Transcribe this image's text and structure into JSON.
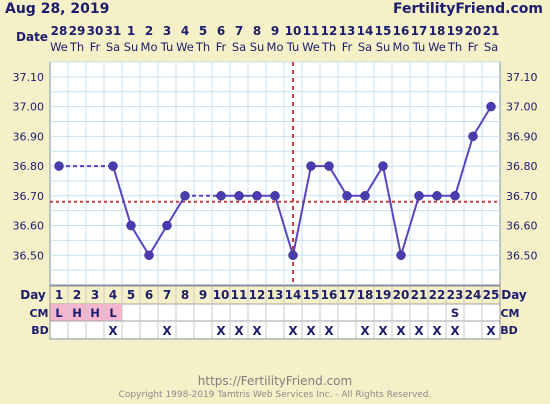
{
  "header": {
    "date": "Aug 28, 2019",
    "brand": "FertilityFriend.com"
  },
  "footer": {
    "url": "https://FertilityFriend.com",
    "copyright": "Copyright 1998-2019 Tamtris Web Services Inc. - All Rights Reserved."
  },
  "chart_data": {
    "type": "line",
    "title": "",
    "row_labels": {
      "date": "Date",
      "day": "Day",
      "cm": "CM",
      "bd": "BD"
    },
    "dates": [
      "28",
      "29",
      "30",
      "31",
      "1",
      "2",
      "3",
      "4",
      "5",
      "6",
      "7",
      "8",
      "9",
      "10",
      "11",
      "12",
      "13",
      "14",
      "15",
      "16",
      "17",
      "18",
      "19",
      "20",
      "21"
    ],
    "weekdays": [
      "We",
      "Th",
      "Fr",
      "Sa",
      "Su",
      "Mo",
      "Tu",
      "We",
      "Th",
      "Fr",
      "Sa",
      "Su",
      "Mo",
      "Tu",
      "We",
      "Th",
      "Fr",
      "Sa",
      "Su",
      "Mo",
      "Tu",
      "We",
      "Th",
      "Fr",
      "Sa"
    ],
    "cycle_days": [
      "1",
      "2",
      "3",
      "4",
      "5",
      "6",
      "7",
      "8",
      "9",
      "10",
      "11",
      "12",
      "13",
      "14",
      "15",
      "16",
      "17",
      "18",
      "19",
      "20",
      "21",
      "22",
      "23",
      "24",
      "25"
    ],
    "temperatures": [
      36.8,
      null,
      null,
      36.8,
      36.6,
      36.5,
      36.6,
      36.7,
      null,
      36.7,
      36.7,
      36.7,
      36.7,
      36.5,
      36.8,
      36.8,
      36.7,
      36.7,
      36.8,
      36.5,
      36.7,
      36.7,
      36.7,
      36.9,
      37.0
    ],
    "interpolated_segments": [
      [
        1,
        4
      ],
      [
        8,
        10
      ]
    ],
    "y_ticks": [
      "37.10",
      "37.00",
      "36.90",
      "36.80",
      "36.70",
      "36.60",
      "36.50"
    ],
    "ylim": [
      36.4,
      37.15
    ],
    "coverline": 36.68,
    "ovulation_day": 14,
    "cm": [
      "L",
      "H",
      "H",
      "L",
      "",
      "",
      "",
      "",
      "",
      "",
      "",
      "",
      "",
      "",
      "",
      "",
      "",
      "",
      "",
      "",
      "",
      "",
      "S",
      "",
      ""
    ],
    "bd": [
      "",
      "",
      "",
      "X",
      "",
      "",
      "X",
      "",
      "",
      "X",
      "X",
      "X",
      "",
      "X",
      "X",
      "X",
      "",
      "X",
      "X",
      "X",
      "X",
      "X",
      "X",
      "",
      "X"
    ],
    "colors": {
      "background": "#f6f0c8",
      "plot": "#ffffff",
      "grid": "#c8dff0",
      "line": "#5a45c0",
      "point": "#4b3bb0",
      "coverline": "#c04040",
      "ovulation": "#c04040",
      "text": "#1c1c6c",
      "menses": "#f4b6cf"
    }
  }
}
